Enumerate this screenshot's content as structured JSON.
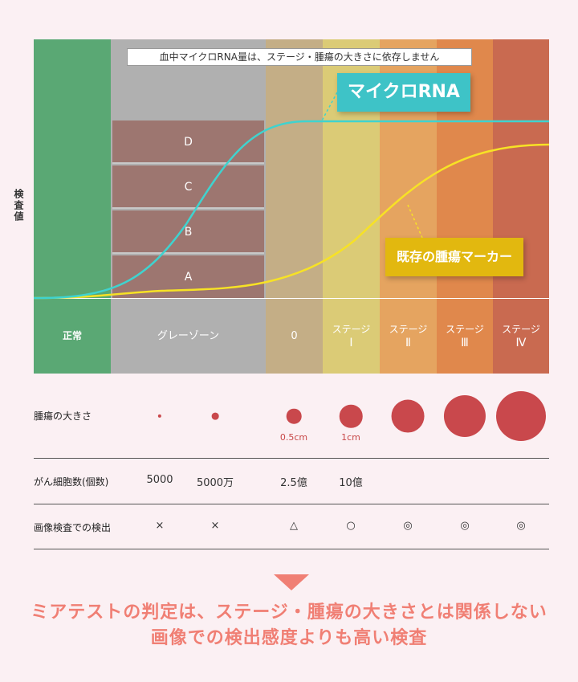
{
  "chart": {
    "y_axis_label": "検査値",
    "note": "血中マイクロRNA量は、ステージ・腫瘍の大きさに依存しません",
    "callouts": {
      "microRNA": "マイクロRNA",
      "marker": "既存の腫瘍マーカー"
    },
    "gray_zone_levels": [
      "D",
      "C",
      "B",
      "A"
    ],
    "stages": [
      {
        "label": "正常",
        "roman": "",
        "color": "#5aa874"
      },
      {
        "label": "グレーゾーン",
        "roman": "",
        "color": "#b0b0b0"
      },
      {
        "label": "0",
        "roman": "",
        "color": "#c4ae86"
      },
      {
        "label": "ステージ",
        "roman": "Ⅰ",
        "color": "#dbcb76"
      },
      {
        "label": "ステージ",
        "roman": "Ⅱ",
        "color": "#e5a460"
      },
      {
        "label": "ステージ",
        "roman": "Ⅲ",
        "color": "#e0884c"
      },
      {
        "label": "ステージ",
        "roman": "Ⅳ",
        "color": "#c96a50"
      }
    ],
    "colors": {
      "microRNA_curve": "#3fd3cf",
      "marker_curve": "#f7e225",
      "callout_microRNA": "#3ec3c7",
      "callout_marker": "#e2b80f"
    }
  },
  "table": {
    "rows": [
      {
        "label": "腫瘍の大きさ",
        "cells": [
          "",
          "",
          "",
          "",
          "",
          "",
          ""
        ],
        "size_labels": [
          "",
          "",
          "",
          "0.5cm",
          "1cm",
          "",
          "",
          ""
        ]
      },
      {
        "label": "がん細胞数(個数)",
        "cells": [
          "5000",
          "5000万",
          "2.5億",
          "10億",
          "",
          "",
          ""
        ]
      },
      {
        "label": "画像検査での検出",
        "cells": [
          "×",
          "×",
          "△",
          "○",
          "◎",
          "◎",
          "◎"
        ]
      }
    ],
    "tumor_relative_diameter": [
      0.07,
      0.14,
      0.3,
      0.46,
      0.66,
      0.84,
      1.0
    ],
    "tumor_color": "#c9484c"
  },
  "conclusion": {
    "line1": "ミアテストの判定は、ステージ・腫瘍の大きさとは関係しない",
    "line2": "画像での検出感度よりも高い検査",
    "color": "#f07f74"
  }
}
